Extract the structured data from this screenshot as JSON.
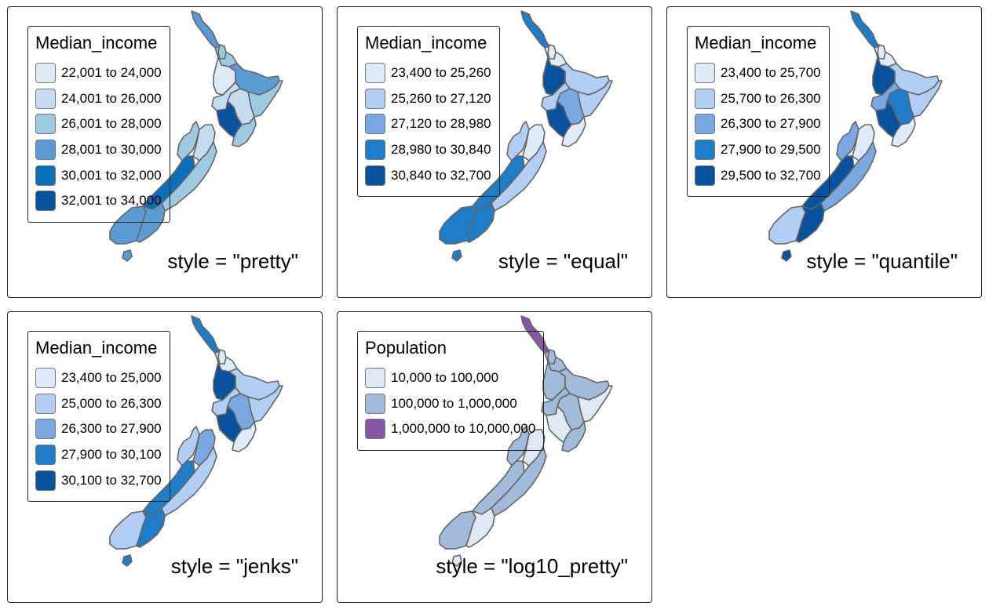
{
  "panels": [
    {
      "legend_title": "Median_income",
      "caption": "style = \"pretty\"",
      "legend": [
        {
          "label": "22,001 to 24,000",
          "color": "#deebf7"
        },
        {
          "label": "24,001 to 26,000",
          "color": "#c6dbef"
        },
        {
          "label": "26,001 to 28,000",
          "color": "#9ecae1"
        },
        {
          "label": "28,001 to 30,000",
          "color": "#5a9bd4"
        },
        {
          "label": "30,001 to 32,000",
          "color": "#0a6fb8"
        },
        {
          "label": "32,001 to 34,000",
          "color": "#08519c"
        }
      ]
    },
    {
      "legend_title": "Median_income",
      "caption": "style = \"equal\"",
      "legend": [
        {
          "label": "23,400 to 25,260",
          "color": "#deebfb"
        },
        {
          "label": "25,260 to 27,120",
          "color": "#b3cef5"
        },
        {
          "label": "27,120 to 28,980",
          "color": "#7aa8e0"
        },
        {
          "label": "28,980 to 30,840",
          "color": "#1f7cc7"
        },
        {
          "label": "30,840 to 32,700",
          "color": "#08519c"
        }
      ]
    },
    {
      "legend_title": "Median_income",
      "caption": "style = \"quantile\"",
      "legend": [
        {
          "label": "23,400 to 25,700",
          "color": "#deebfb"
        },
        {
          "label": "25,700 to 26,300",
          "color": "#b3cef5"
        },
        {
          "label": "26,300 to 27,900",
          "color": "#7aa8e0"
        },
        {
          "label": "27,900 to 29,500",
          "color": "#1f7cc7"
        },
        {
          "label": "29,500 to 32,700",
          "color": "#08519c"
        }
      ]
    },
    {
      "legend_title": "Median_income",
      "caption": "style = \"jenks\"",
      "legend": [
        {
          "label": "23,400 to 25,000",
          "color": "#deebfb"
        },
        {
          "label": "25,000 to 26,300",
          "color": "#b3cef5"
        },
        {
          "label": "26,300 to 27,900",
          "color": "#7aa8e0"
        },
        {
          "label": "27,900 to 30,100",
          "color": "#1f7cc7"
        },
        {
          "label": "30,100 to 32,700",
          "color": "#08519c"
        }
      ]
    },
    {
      "legend_title": "Population",
      "caption": "style = \"log10_pretty\"",
      "legend": [
        {
          "label": "10,000 to 100,000",
          "color": "#dfe9f3"
        },
        {
          "label": "100,000 to 1,000,000",
          "color": "#a2bbda"
        },
        {
          "label": "1,000,000 to 10,000,000",
          "color": "#8856a7"
        }
      ]
    }
  ],
  "region_fill_index": [
    [
      3,
      2,
      0,
      3,
      2,
      1,
      1,
      2,
      5,
      2,
      1,
      2,
      4,
      3,
      3,
      3
    ],
    [
      3,
      0,
      4,
      1,
      1,
      2,
      1,
      0,
      4,
      1,
      0,
      1,
      3,
      3,
      3,
      1
    ],
    [
      3,
      0,
      4,
      1,
      1,
      3,
      2,
      0,
      4,
      2,
      0,
      2,
      4,
      1,
      4,
      2
    ],
    [
      3,
      0,
      4,
      1,
      1,
      2,
      1,
      0,
      4,
      1,
      2,
      1,
      3,
      1,
      3,
      1
    ],
    [
      2,
      1,
      1,
      1,
      0,
      1,
      1,
      1,
      0,
      1,
      0,
      1,
      1,
      1,
      0,
      0
    ]
  ]
}
